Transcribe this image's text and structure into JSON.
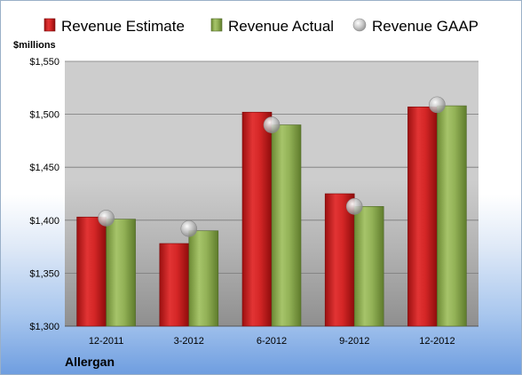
{
  "chart_data": {
    "type": "bar",
    "unit_label": "$millions",
    "company": "Allergan",
    "categories": [
      "12-2011",
      "3-2012",
      "6-2012",
      "9-2012",
      "12-2012"
    ],
    "series": [
      {
        "name": "Revenue Estimate",
        "kind": "bar",
        "color": "#cc1f1f",
        "values": [
          1403,
          1378,
          1502,
          1425,
          1507
        ]
      },
      {
        "name": "Revenue Actual",
        "kind": "bar",
        "color": "#8fae4f",
        "values": [
          1401,
          1390,
          1490,
          1413,
          1508
        ]
      },
      {
        "name": "Revenue GAAP",
        "kind": "marker",
        "color": "#b8b8b8",
        "values": [
          1402,
          1392,
          1490,
          1413,
          1509
        ]
      }
    ],
    "ylim": [
      1300,
      1550
    ],
    "y_ticks": [
      1300,
      1350,
      1400,
      1450,
      1500,
      1550
    ],
    "y_tick_labels": [
      "$1,300",
      "$1,350",
      "$1,400",
      "$1,450",
      "$1,500",
      "$1,550"
    ],
    "grid": true,
    "legend_position": "top"
  }
}
